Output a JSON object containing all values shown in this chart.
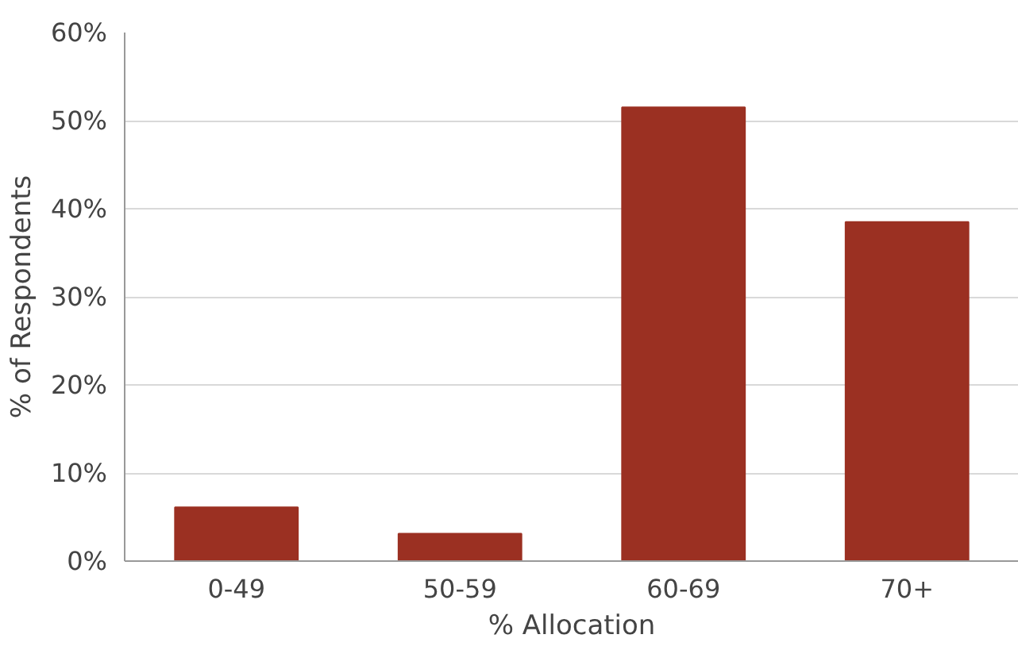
{
  "chart_data": {
    "type": "bar",
    "xlabel": "% Allocation",
    "ylabel": "% of Respondents",
    "categories": [
      "0-49",
      "50-59",
      "60-69",
      "70+"
    ],
    "series": [
      {
        "color": "#9b3022",
        "values": [
          6.1,
          3.1,
          51.5,
          38.5
        ]
      }
    ],
    "ylim": [
      0,
      60
    ],
    "yticks": [
      {
        "value": 0,
        "label": "0%"
      },
      {
        "value": 10,
        "label": "10%"
      },
      {
        "value": 20,
        "label": "20%"
      },
      {
        "value": 30,
        "label": "30%"
      },
      {
        "value": 40,
        "label": "40%"
      },
      {
        "value": 50,
        "label": "50%"
      },
      {
        "value": 60,
        "label": "60%"
      }
    ],
    "grid": "y"
  }
}
